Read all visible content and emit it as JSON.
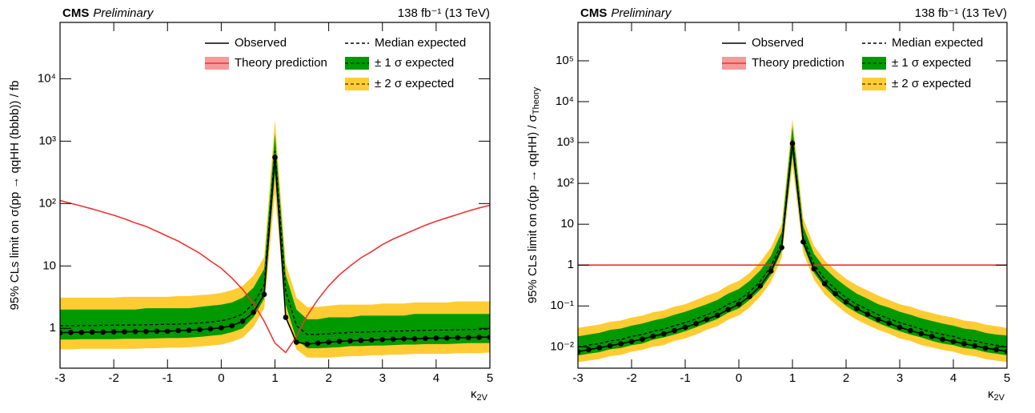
{
  "chart_data": [
    {
      "type": "line",
      "experiment": "CMS",
      "status": "Preliminary",
      "lumi": "138 fb⁻¹ (13 TeV)",
      "ylabel": "95% CLs limit on σ(pp → qqHH (bbbb)) / fb",
      "xlabel": "κ",
      "xlabel_sub": "2V",
      "log_y": true,
      "legend": "upper right",
      "xlim": [
        -3,
        5
      ],
      "xticks": [
        -3,
        -2,
        -1,
        0,
        1,
        2,
        3,
        4,
        5
      ],
      "ylim": [
        0.23,
        80000
      ],
      "yticks": [
        1,
        10,
        {
          "value": 100,
          "label": "10²"
        },
        {
          "value": 1000,
          "label": "10³"
        },
        {
          "value": 10000,
          "label": "10⁴"
        }
      ],
      "x": [
        -3,
        -2.8,
        -2.6,
        -2.4,
        -2.2,
        -2,
        -1.8,
        -1.6,
        -1.4,
        -1.2,
        -1,
        -0.8,
        -0.6,
        -0.4,
        -0.2,
        0,
        0.2,
        0.4,
        0.6,
        0.8,
        1,
        1.2,
        1.4,
        1.6,
        1.8,
        2,
        2.2,
        2.4,
        2.6,
        2.8,
        3,
        3.2,
        3.4,
        3.6,
        3.8,
        4,
        4.2,
        4.4,
        4.6,
        4.8,
        5
      ],
      "series": [
        {
          "name": "Observed",
          "color": "#000000",
          "style": "solid",
          "markers": true,
          "values": [
            0.85,
            0.86,
            0.86,
            0.87,
            0.87,
            0.88,
            0.88,
            0.89,
            0.89,
            0.9,
            0.9,
            0.92,
            0.93,
            0.95,
            0.98,
            1.02,
            1.1,
            1.3,
            1.8,
            3.5,
            550,
            1.5,
            0.6,
            0.56,
            0.58,
            0.6,
            0.62,
            0.63,
            0.64,
            0.65,
            0.66,
            0.67,
            0.68,
            0.68,
            0.69,
            0.7,
            0.7,
            0.71,
            0.71,
            0.72,
            0.72
          ]
        },
        {
          "name": "Median expected",
          "color": "#000000",
          "style": "dashed",
          "values": [
            1.1,
            1.1,
            1.11,
            1.11,
            1.12,
            1.12,
            1.13,
            1.13,
            1.14,
            1.15,
            1.16,
            1.17,
            1.19,
            1.22,
            1.26,
            1.32,
            1.45,
            1.7,
            2.5,
            5,
            700,
            4,
            1.1,
            0.8,
            0.8,
            0.82,
            0.84,
            0.86,
            0.87,
            0.88,
            0.89,
            0.9,
            0.91,
            0.92,
            0.93,
            0.94,
            0.94,
            0.95,
            0.96,
            0.96,
            0.97
          ]
        },
        {
          "name": "± 1 σ expected",
          "color": "#009900",
          "low": [
            0.66,
            0.66,
            0.67,
            0.67,
            0.67,
            0.67,
            0.68,
            0.68,
            0.68,
            0.69,
            0.7,
            0.7,
            0.71,
            0.73,
            0.76,
            0.79,
            0.87,
            1.0,
            1.5,
            3.0,
            300,
            2.4,
            0.66,
            0.48,
            0.48,
            0.49,
            0.5,
            0.52,
            0.52,
            0.53,
            0.53,
            0.54,
            0.55,
            0.55,
            0.56,
            0.56,
            0.56,
            0.57,
            0.58,
            0.58,
            0.58
          ],
          "high": [
            2.0,
            2.0,
            2.0,
            2.0,
            2.0,
            2.0,
            2.0,
            2.0,
            2.1,
            2.1,
            2.1,
            2.1,
            2.1,
            2.2,
            2.3,
            2.4,
            2.6,
            3.1,
            4.5,
            9.0,
            1300,
            7.2,
            2.0,
            1.4,
            1.4,
            1.5,
            1.5,
            1.5,
            1.6,
            1.6,
            1.6,
            1.6,
            1.6,
            1.7,
            1.7,
            1.7,
            1.7,
            1.7,
            1.7,
            1.7,
            1.7
          ]
        },
        {
          "name": "± 2 σ expected",
          "color": "#ffcc33",
          "low": [
            0.46,
            0.46,
            0.47,
            0.47,
            0.47,
            0.47,
            0.47,
            0.47,
            0.48,
            0.48,
            0.49,
            0.49,
            0.5,
            0.51,
            0.53,
            0.55,
            0.61,
            0.71,
            1.05,
            2.1,
            150,
            1.7,
            0.46,
            0.34,
            0.34,
            0.34,
            0.35,
            0.36,
            0.36,
            0.37,
            0.37,
            0.38,
            0.38,
            0.39,
            0.39,
            0.39,
            0.39,
            0.4,
            0.4,
            0.4,
            0.41
          ],
          "high": [
            3.1,
            3.1,
            3.1,
            3.1,
            3.1,
            3.1,
            3.2,
            3.2,
            3.2,
            3.2,
            3.2,
            3.3,
            3.3,
            3.4,
            3.5,
            3.7,
            4.1,
            4.8,
            7.0,
            14,
            2200,
            11,
            3.1,
            2.2,
            2.2,
            2.3,
            2.4,
            2.4,
            2.4,
            2.4,
            2.5,
            2.5,
            2.5,
            2.6,
            2.6,
            2.6,
            2.6,
            2.7,
            2.7,
            2.7,
            2.7
          ]
        },
        {
          "name": "Theory prediction",
          "color": "#ee3333",
          "style": "solid",
          "values": [
            112,
            101,
            91,
            82,
            73,
            65,
            57,
            49,
            43,
            36,
            30,
            25,
            20,
            16,
            12,
            9.2,
            6.4,
            4.2,
            2.5,
            1.3,
            0.58,
            0.41,
            0.74,
            1.6,
            2.9,
            4.8,
            7.2,
            10,
            13.5,
            17,
            22,
            27,
            32,
            38,
            45,
            52,
            59,
            67,
            76,
            85,
            94
          ]
        }
      ]
    },
    {
      "type": "line",
      "experiment": "CMS",
      "status": "Preliminary",
      "lumi": "138 fb⁻¹ (13 TeV)",
      "ylabel": "95% CLs limit on σ(pp → qqHH) / σ",
      "ylabel_sub": "Theory",
      "xlabel": "κ",
      "xlabel_sub": "2V",
      "log_y": true,
      "legend": "upper right",
      "xlim": [
        -3,
        5
      ],
      "xticks": [
        -3,
        -2,
        -1,
        0,
        1,
        2,
        3,
        4,
        5
      ],
      "ylim": [
        0.003,
        870000
      ],
      "yticks": [
        {
          "value": 0.01,
          "label": "10⁻²"
        },
        {
          "value": 0.1,
          "label": "10⁻¹"
        },
        1,
        10,
        {
          "value": 100,
          "label": "10²"
        },
        {
          "value": 1000,
          "label": "10³"
        },
        {
          "value": 10000,
          "label": "10⁴"
        },
        {
          "value": 100000,
          "label": "10⁵"
        }
      ],
      "x": [
        -3,
        -2.8,
        -2.6,
        -2.4,
        -2.2,
        -2,
        -1.8,
        -1.6,
        -1.4,
        -1.2,
        -1,
        -0.8,
        -0.6,
        -0.4,
        -0.2,
        0,
        0.2,
        0.4,
        0.6,
        0.8,
        1,
        1.2,
        1.4,
        1.6,
        1.8,
        2,
        2.2,
        2.4,
        2.6,
        2.8,
        3,
        3.2,
        3.4,
        3.6,
        3.8,
        4,
        4.2,
        4.4,
        4.6,
        4.8,
        5
      ],
      "series": [
        {
          "name": "Observed",
          "color": "#000000",
          "style": "solid",
          "markers": true,
          "values": [
            0.0076,
            0.0085,
            0.0095,
            0.0106,
            0.0119,
            0.0135,
            0.0154,
            0.0182,
            0.0207,
            0.025,
            0.03,
            0.037,
            0.047,
            0.059,
            0.082,
            0.11,
            0.17,
            0.31,
            0.72,
            2.7,
            950,
            3.7,
            0.81,
            0.35,
            0.2,
            0.125,
            0.086,
            0.063,
            0.047,
            0.038,
            0.03,
            0.025,
            0.021,
            0.018,
            0.0153,
            0.0135,
            0.0119,
            0.0106,
            0.0093,
            0.0085,
            0.0077
          ]
        },
        {
          "name": "Median expected",
          "color": "#000000",
          "style": "dashed",
          "values": [
            0.0099,
            0.011,
            0.012,
            0.014,
            0.015,
            0.018,
            0.02,
            0.024,
            0.027,
            0.033,
            0.039,
            0.048,
            0.061,
            0.077,
            0.11,
            0.14,
            0.22,
            0.4,
            0.94,
            3.5,
            1200,
            4.8,
            1.05,
            0.46,
            0.26,
            0.16,
            0.11,
            0.082,
            0.061,
            0.049,
            0.039,
            0.033,
            0.027,
            0.023,
            0.02,
            0.018,
            0.015,
            0.014,
            0.012,
            0.011,
            0.01
          ]
        },
        {
          "name": "± 1 σ expected",
          "color": "#009900",
          "low": [
            0.0061,
            0.0068,
            0.0074,
            0.0087,
            0.0093,
            0.011,
            0.012,
            0.015,
            0.017,
            0.02,
            0.024,
            0.03,
            0.038,
            0.048,
            0.068,
            0.087,
            0.14,
            0.25,
            0.58,
            2.2,
            500,
            3.0,
            0.65,
            0.29,
            0.16,
            0.099,
            0.068,
            0.051,
            0.038,
            0.03,
            0.024,
            0.02,
            0.017,
            0.014,
            0.012,
            0.011,
            0.0093,
            0.0087,
            0.0074,
            0.0068,
            0.0062
          ],
          "high": [
            0.018,
            0.02,
            0.022,
            0.026,
            0.028,
            0.033,
            0.037,
            0.044,
            0.05,
            0.061,
            0.072,
            0.089,
            0.11,
            0.14,
            0.2,
            0.26,
            0.41,
            0.74,
            1.7,
            6.5,
            2500,
            8.9,
            1.9,
            0.85,
            0.48,
            0.3,
            0.2,
            0.15,
            0.11,
            0.091,
            0.072,
            0.061,
            0.05,
            0.043,
            0.037,
            0.033,
            0.028,
            0.026,
            0.022,
            0.02,
            0.019
          ]
        },
        {
          "name": "± 2 σ expected",
          "color": "#ffcc33",
          "low": [
            0.0042,
            0.0046,
            0.005,
            0.0059,
            0.0063,
            0.0076,
            0.0084,
            0.01,
            0.011,
            0.014,
            0.016,
            0.02,
            0.026,
            0.032,
            0.046,
            0.059,
            0.092,
            0.17,
            0.39,
            1.5,
            280,
            2.0,
            0.44,
            0.19,
            0.11,
            0.067,
            0.046,
            0.034,
            0.026,
            0.021,
            0.016,
            0.014,
            0.011,
            0.0097,
            0.0084,
            0.0076,
            0.0063,
            0.0059,
            0.005,
            0.0046,
            0.0042
          ],
          "high": [
            0.029,
            0.032,
            0.035,
            0.041,
            0.044,
            0.052,
            0.058,
            0.07,
            0.078,
            0.096,
            0.11,
            0.14,
            0.18,
            0.22,
            0.32,
            0.41,
            0.64,
            1.2,
            2.7,
            10,
            3800,
            14,
            3.0,
            1.3,
            0.75,
            0.46,
            0.32,
            0.24,
            0.18,
            0.14,
            0.11,
            0.096,
            0.078,
            0.067,
            0.058,
            0.052,
            0.044,
            0.041,
            0.035,
            0.032,
            0.029
          ]
        },
        {
          "name": "Theory prediction",
          "color": "#ee3333",
          "style": "solid",
          "x": [
            -3,
            5
          ],
          "values": [
            1,
            1
          ]
        }
      ]
    }
  ]
}
